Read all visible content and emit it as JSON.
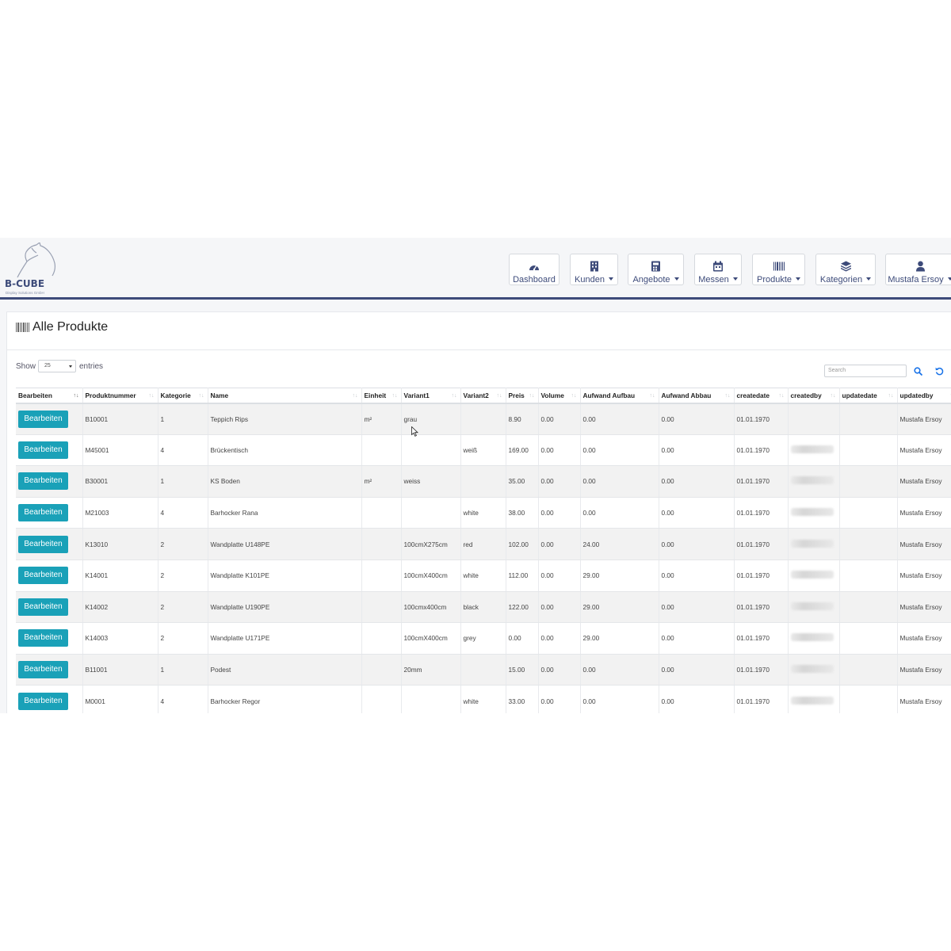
{
  "brand": {
    "name": "B-CUBE",
    "tagline": "Display Solutions GmbH"
  },
  "nav": [
    {
      "label": "Dashboard",
      "icon": "dashboard-icon",
      "dropdown": false
    },
    {
      "label": "Kunden",
      "icon": "building-icon",
      "dropdown": true
    },
    {
      "label": "Angebote",
      "icon": "calculator-icon",
      "dropdown": true
    },
    {
      "label": "Messen",
      "icon": "calendar-icon",
      "dropdown": true
    },
    {
      "label": "Produkte",
      "icon": "barcode-icon",
      "dropdown": true
    },
    {
      "label": "Kategorien",
      "icon": "layers-icon",
      "dropdown": true
    },
    {
      "label": "Mustafa Ersoy",
      "icon": "user-icon",
      "dropdown": true
    }
  ],
  "page": {
    "title": "Alle Produkte",
    "title_icon": "barcode-icon"
  },
  "controls": {
    "show_label": "Show",
    "length_value": "25",
    "entries_label": "entries",
    "search_placeholder": "Search"
  },
  "table": {
    "columns": [
      "Bearbeiten",
      "Produktnummer",
      "Kategorie",
      "Name",
      "Einheit",
      "Variant1",
      "Variant2",
      "Preis",
      "Volume",
      "Aufwand Aufbau",
      "Aufwand Abbau",
      "createdate",
      "createdby",
      "updatedate",
      "updatedby"
    ],
    "edit_label": "Bearbeiten",
    "rows": [
      {
        "produktnummer": "B10001",
        "kategorie": "1",
        "name": "Teppich Rips",
        "einheit": "m²",
        "variant1": "grau",
        "variant2": "",
        "preis": "8.90",
        "volume": "0.00",
        "aufbau": "0.00",
        "abbau": "0.00",
        "createdate": "01.01.1970",
        "createdby_blurred": false,
        "updatedate": "",
        "updatedby": "Mustafa Ersoy"
      },
      {
        "produktnummer": "M45001",
        "kategorie": "4",
        "name": "Brückentisch",
        "einheit": "",
        "variant1": "",
        "variant2": "weiß",
        "preis": "169.00",
        "volume": "0.00",
        "aufbau": "0.00",
        "abbau": "0.00",
        "createdate": "01.01.1970",
        "createdby_blurred": true,
        "updatedate": "",
        "updatedby": "Mustafa Ersoy"
      },
      {
        "produktnummer": "B30001",
        "kategorie": "1",
        "name": "KS Boden",
        "einheit": "m²",
        "variant1": "weiss",
        "variant2": "",
        "preis": "35.00",
        "volume": "0.00",
        "aufbau": "0.00",
        "abbau": "0.00",
        "createdate": "01.01.1970",
        "createdby_blurred": true,
        "updatedate": "",
        "updatedby": "Mustafa Ersoy"
      },
      {
        "produktnummer": "M21003",
        "kategorie": "4",
        "name": "Barhocker Rana",
        "einheit": "",
        "variant1": "",
        "variant2": "white",
        "preis": "38.00",
        "volume": "0.00",
        "aufbau": "0.00",
        "abbau": "0.00",
        "createdate": "01.01.1970",
        "createdby_blurred": true,
        "updatedate": "",
        "updatedby": "Mustafa Ersoy"
      },
      {
        "produktnummer": "K13010",
        "kategorie": "2",
        "name": "Wandplatte U148PE",
        "einheit": "",
        "variant1": "100cmX275cm",
        "variant2": "red",
        "preis": "102.00",
        "volume": "0.00",
        "aufbau": "24.00",
        "abbau": "0.00",
        "createdate": "01.01.1970",
        "createdby_blurred": true,
        "updatedate": "",
        "updatedby": "Mustafa Ersoy"
      },
      {
        "produktnummer": "K14001",
        "kategorie": "2",
        "name": "Wandplatte K101PE",
        "einheit": "",
        "variant1": "100cmX400cm",
        "variant2": "white",
        "preis": "112.00",
        "volume": "0.00",
        "aufbau": "29.00",
        "abbau": "0.00",
        "createdate": "01.01.1970",
        "createdby_blurred": true,
        "updatedate": "",
        "updatedby": "Mustafa Ersoy"
      },
      {
        "produktnummer": "K14002",
        "kategorie": "2",
        "name": "Wandplatte U190PE",
        "einheit": "",
        "variant1": "100cmx400cm",
        "variant2": "black",
        "preis": "122.00",
        "volume": "0.00",
        "aufbau": "29.00",
        "abbau": "0.00",
        "createdate": "01.01.1970",
        "createdby_blurred": true,
        "updatedate": "",
        "updatedby": "Mustafa Ersoy"
      },
      {
        "produktnummer": "K14003",
        "kategorie": "2",
        "name": "Wandplatte U171PE",
        "einheit": "",
        "variant1": "100cmX400cm",
        "variant2": "grey",
        "preis": "0.00",
        "volume": "0.00",
        "aufbau": "29.00",
        "abbau": "0.00",
        "createdate": "01.01.1970",
        "createdby_blurred": true,
        "updatedate": "",
        "updatedby": "Mustafa Ersoy"
      },
      {
        "produktnummer": "B11001",
        "kategorie": "1",
        "name": "Podest",
        "einheit": "",
        "variant1": "20mm",
        "variant2": "",
        "preis": "15.00",
        "volume": "0.00",
        "aufbau": "0.00",
        "abbau": "0.00",
        "createdate": "01.01.1970",
        "createdby_blurred": true,
        "updatedate": "",
        "updatedby": "Mustafa Ersoy"
      },
      {
        "produktnummer": "M0001",
        "kategorie": "4",
        "name": "Barhocker Regor",
        "einheit": "",
        "variant1": "",
        "variant2": "white",
        "preis": "33.00",
        "volume": "0.00",
        "aufbau": "0.00",
        "abbau": "0.00",
        "createdate": "01.01.1970",
        "createdby_blurred": true,
        "updatedate": "",
        "updatedby": "Mustafa Ersoy"
      }
    ]
  },
  "colors": {
    "primary": "#3d4b7a",
    "button": "#1aa1b8",
    "link": "#1a73e8"
  }
}
